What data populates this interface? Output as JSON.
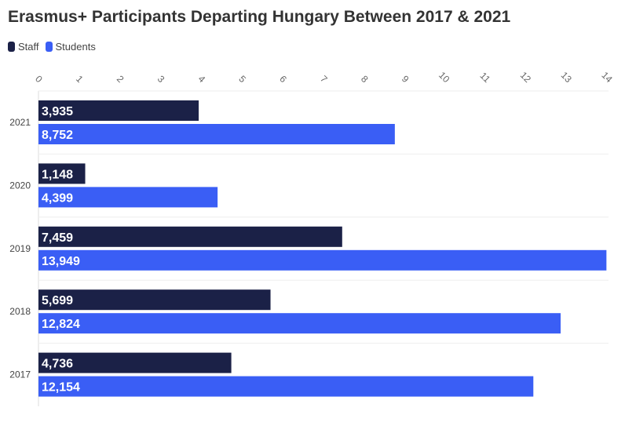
{
  "chart_data": {
    "type": "bar",
    "orientation": "horizontal",
    "title": "Erasmus+ Participants Departing Hungary Between 2017 & 2021",
    "categories": [
      "2021",
      "2020",
      "2019",
      "2018",
      "2017"
    ],
    "series": [
      {
        "name": "Staff",
        "color": "#1b2147",
        "values": [
          3935,
          1148,
          7459,
          5699,
          4736
        ],
        "labels": [
          "3,935",
          "1,148",
          "7,459",
          "5,699",
          "4,736"
        ]
      },
      {
        "name": "Students",
        "color": "#3a5ef5",
        "values": [
          8752,
          4399,
          13949,
          12824,
          12154
        ],
        "labels": [
          "8,752",
          "4,399",
          "13,949",
          "12,824",
          "12,154"
        ]
      }
    ],
    "x_ticks": [
      "0",
      "1",
      "2",
      "3",
      "4",
      "5",
      "6",
      "7",
      "8",
      "9",
      "10",
      "11",
      "12",
      "13",
      "14"
    ],
    "x_tick_values": [
      0,
      1000,
      2000,
      3000,
      4000,
      5000,
      6000,
      7000,
      8000,
      9000,
      10000,
      11000,
      12000,
      13000,
      14000
    ],
    "xlim": [
      0,
      14000
    ],
    "xaxis_position": "top",
    "grid": true,
    "legend_position": "top-left"
  }
}
